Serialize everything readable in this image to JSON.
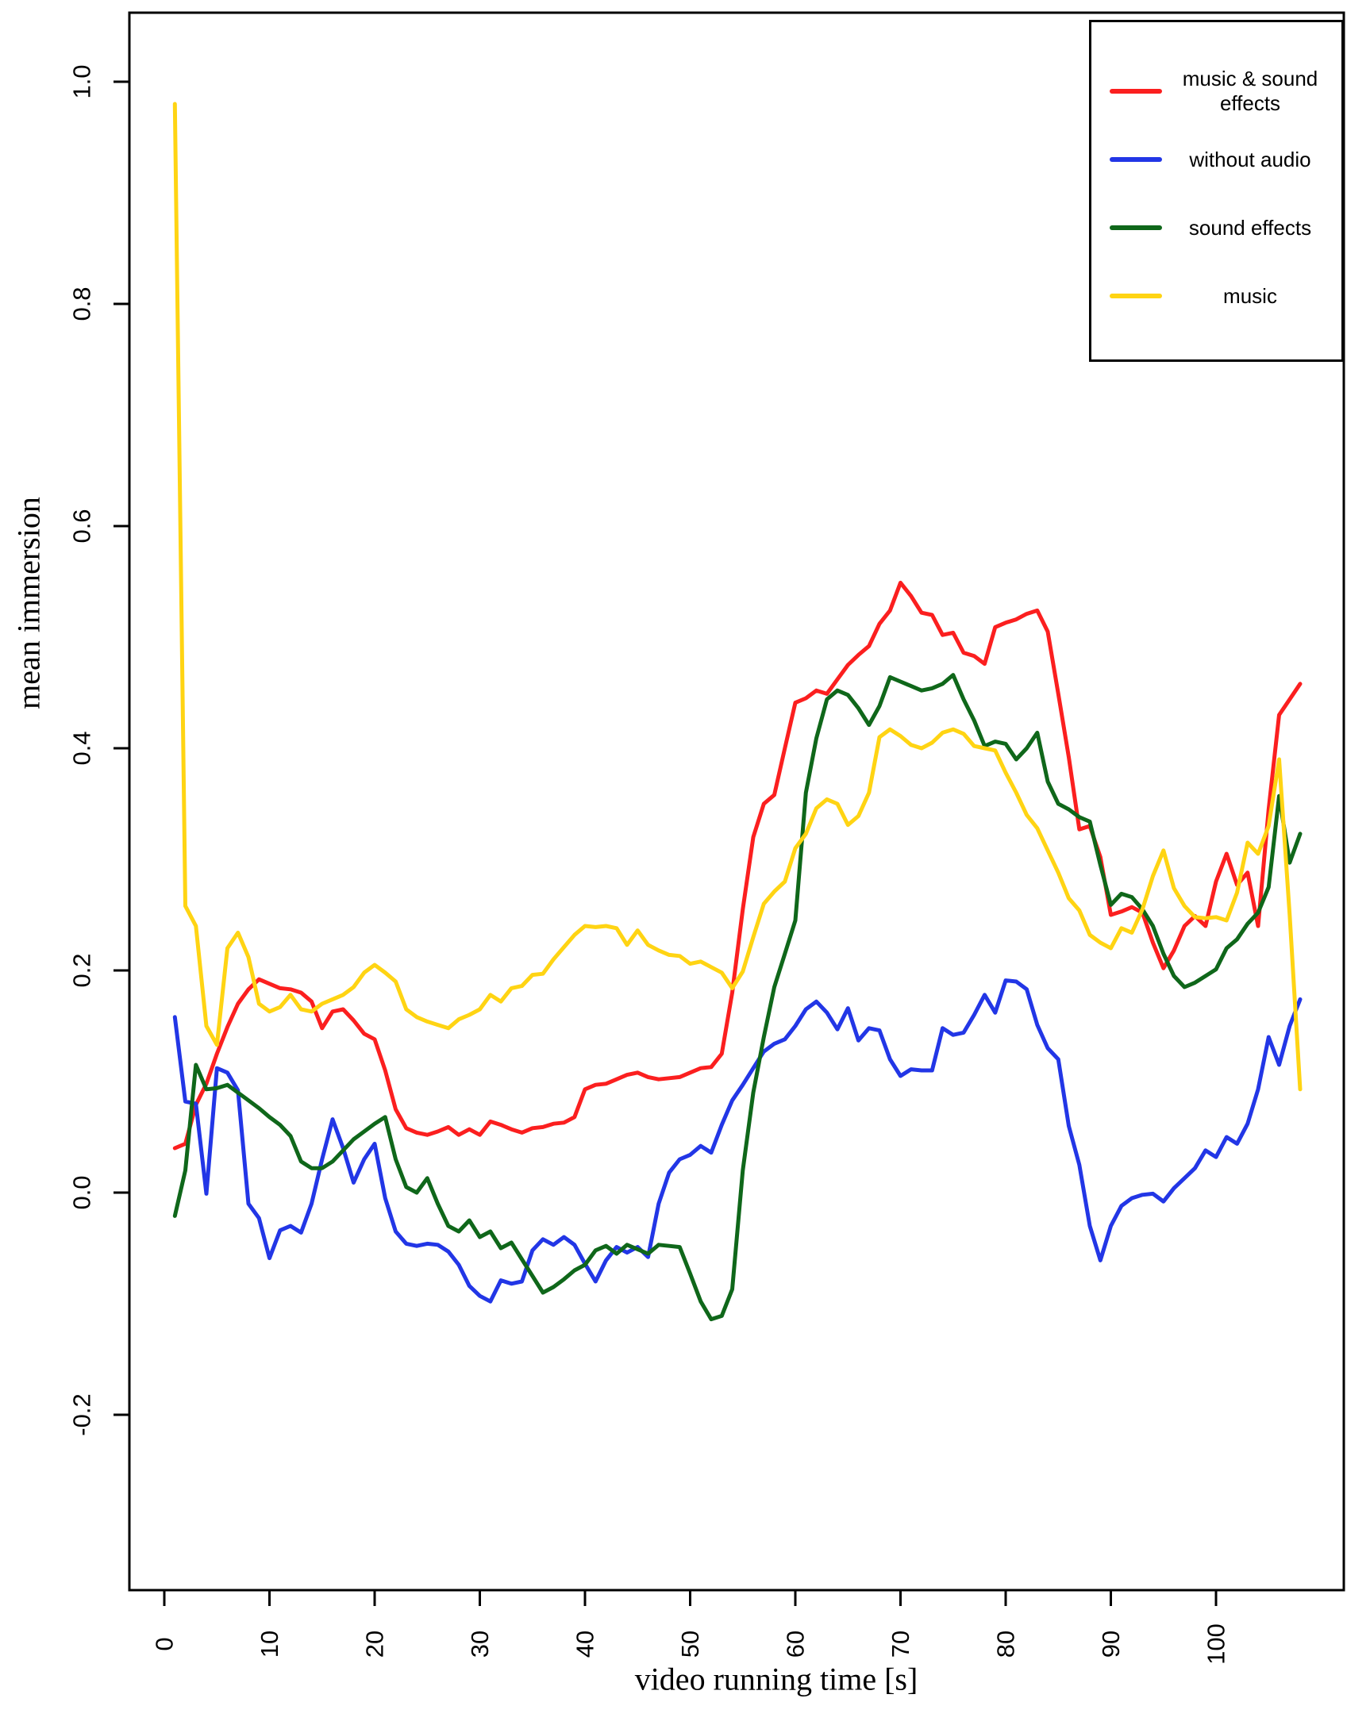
{
  "chart_data": {
    "type": "line",
    "title": "",
    "xlabel": "video running time [s]",
    "ylabel": "mean immersion",
    "grid": false,
    "legend_position": "top-right",
    "xlim": [
      -3.3,
      112.5
    ],
    "ylim": [
      -0.352,
      1.062
    ],
    "x_tick_values": [
      0,
      10,
      20,
      30,
      40,
      50,
      60,
      70,
      80,
      90,
      100
    ],
    "x_tick_labels": [
      "0",
      "10",
      "20",
      "30",
      "40",
      "50",
      "60",
      "70",
      "80",
      "90",
      "100"
    ],
    "y_tick_values": [
      1.0,
      0.8,
      0.6,
      0.4,
      0.2,
      0.0,
      -0.2
    ],
    "y_tick_labels": [
      "1.0",
      "0.8",
      "0.6",
      "0.4",
      "0.2",
      "0.0",
      "-0.2"
    ],
    "x_start": 1,
    "x_step": 1,
    "series": [
      {
        "name": "music & sound effects",
        "color": "#fb1f1f",
        "values": [
          0.04,
          0.044,
          0.079,
          0.098,
          0.125,
          0.149,
          0.17,
          0.183,
          0.192,
          0.188,
          0.184,
          0.183,
          0.18,
          0.172,
          0.148,
          0.163,
          0.165,
          0.155,
          0.143,
          0.138,
          0.11,
          0.075,
          0.058,
          0.054,
          0.052,
          0.055,
          0.059,
          0.052,
          0.057,
          0.052,
          0.064,
          0.061,
          0.057,
          0.054,
          0.058,
          0.059,
          0.062,
          0.063,
          0.068,
          0.093,
          0.097,
          0.098,
          0.102,
          0.106,
          0.108,
          0.104,
          0.102,
          0.103,
          0.104,
          0.108,
          0.112,
          0.113,
          0.125,
          0.18,
          0.255,
          0.32,
          0.35,
          0.358,
          0.4,
          0.441,
          0.445,
          0.452,
          0.449,
          0.462,
          0.475,
          0.484,
          0.492,
          0.512,
          0.524,
          0.549,
          0.537,
          0.522,
          0.52,
          0.502,
          0.504,
          0.486,
          0.483,
          0.476,
          0.509,
          0.513,
          0.516,
          0.521,
          0.524,
          0.505,
          0.449,
          0.392,
          0.327,
          0.33,
          0.302,
          0.25,
          0.253,
          0.257,
          0.252,
          0.225,
          0.202,
          0.218,
          0.24,
          0.249,
          0.24,
          0.28,
          0.305,
          0.277,
          0.288,
          0.24,
          0.345,
          0.43,
          0.444,
          0.458
        ]
      },
      {
        "name": "without audio",
        "color": "#2236e6",
        "values": [
          0.158,
          0.082,
          0.08,
          -0.001,
          0.112,
          0.108,
          0.092,
          -0.01,
          -0.023,
          -0.059,
          -0.034,
          -0.03,
          -0.036,
          -0.01,
          0.03,
          0.066,
          0.04,
          0.009,
          0.03,
          0.044,
          -0.005,
          -0.035,
          -0.046,
          -0.048,
          -0.046,
          -0.047,
          -0.053,
          -0.065,
          -0.084,
          -0.093,
          -0.098,
          -0.079,
          -0.082,
          -0.08,
          -0.052,
          -0.042,
          -0.047,
          -0.04,
          -0.047,
          -0.064,
          -0.08,
          -0.061,
          -0.049,
          -0.054,
          -0.049,
          -0.058,
          -0.01,
          0.018,
          0.03,
          0.034,
          0.042,
          0.036,
          0.061,
          0.083,
          0.097,
          0.112,
          0.127,
          0.134,
          0.138,
          0.15,
          0.165,
          0.172,
          0.162,
          0.147,
          0.166,
          0.137,
          0.148,
          0.146,
          0.12,
          0.105,
          0.111,
          0.11,
          0.11,
          0.148,
          0.142,
          0.144,
          0.16,
          0.178,
          0.162,
          0.191,
          0.19,
          0.183,
          0.151,
          0.13,
          0.12,
          0.06,
          0.025,
          -0.03,
          -0.061,
          -0.03,
          -0.012,
          -0.005,
          -0.002,
          -0.001,
          -0.008,
          0.004,
          0.013,
          0.022,
          0.038,
          0.032,
          0.05,
          0.044,
          0.062,
          0.093,
          0.14,
          0.115,
          0.15,
          0.174
        ]
      },
      {
        "name": "sound effects",
        "color": "#0f671a",
        "values": [
          -0.021,
          0.02,
          0.115,
          0.093,
          0.094,
          0.097,
          0.09,
          0.083,
          0.076,
          0.068,
          0.061,
          0.051,
          0.028,
          0.022,
          0.022,
          0.028,
          0.038,
          0.048,
          0.055,
          0.062,
          0.068,
          0.03,
          0.005,
          0.0,
          0.013,
          -0.01,
          -0.03,
          -0.035,
          -0.025,
          -0.04,
          -0.035,
          -0.05,
          -0.045,
          -0.06,
          -0.075,
          -0.09,
          -0.085,
          -0.078,
          -0.07,
          -0.065,
          -0.052,
          -0.048,
          -0.055,
          -0.047,
          -0.051,
          -0.055,
          -0.047,
          -0.048,
          -0.049,
          -0.073,
          -0.098,
          -0.114,
          -0.111,
          -0.087,
          0.02,
          0.09,
          0.14,
          0.185,
          0.215,
          0.245,
          0.36,
          0.409,
          0.444,
          0.452,
          0.448,
          0.436,
          0.421,
          0.438,
          0.464,
          0.46,
          0.456,
          0.452,
          0.454,
          0.458,
          0.466,
          0.444,
          0.425,
          0.402,
          0.406,
          0.404,
          0.39,
          0.4,
          0.414,
          0.37,
          0.35,
          0.345,
          0.338,
          0.334,
          0.295,
          0.259,
          0.269,
          0.266,
          0.255,
          0.24,
          0.215,
          0.195,
          0.185,
          0.189,
          0.195,
          0.201,
          0.22,
          0.228,
          0.242,
          0.252,
          0.275,
          0.357,
          0.297,
          0.323
        ]
      },
      {
        "name": "music",
        "color": "#ffd413",
        "values": [
          0.98,
          0.258,
          0.24,
          0.15,
          0.133,
          0.22,
          0.234,
          0.212,
          0.17,
          0.163,
          0.167,
          0.178,
          0.165,
          0.163,
          0.17,
          0.174,
          0.178,
          0.185,
          0.198,
          0.205,
          0.198,
          0.19,
          0.165,
          0.158,
          0.154,
          0.151,
          0.148,
          0.156,
          0.16,
          0.165,
          0.178,
          0.172,
          0.184,
          0.186,
          0.196,
          0.197,
          0.21,
          0.221,
          0.232,
          0.24,
          0.239,
          0.24,
          0.238,
          0.223,
          0.236,
          0.223,
          0.218,
          0.214,
          0.213,
          0.206,
          0.208,
          0.203,
          0.198,
          0.184,
          0.199,
          0.23,
          0.26,
          0.271,
          0.28,
          0.31,
          0.323,
          0.346,
          0.354,
          0.35,
          0.331,
          0.339,
          0.36,
          0.41,
          0.417,
          0.411,
          0.403,
          0.4,
          0.405,
          0.414,
          0.417,
          0.413,
          0.402,
          0.4,
          0.398,
          0.378,
          0.36,
          0.34,
          0.328,
          0.308,
          0.288,
          0.265,
          0.254,
          0.232,
          0.225,
          0.22,
          0.238,
          0.234,
          0.255,
          0.285,
          0.308,
          0.274,
          0.258,
          0.248,
          0.247,
          0.248,
          0.245,
          0.27,
          0.315,
          0.305,
          0.33,
          0.39,
          0.25,
          0.093
        ]
      }
    ]
  }
}
